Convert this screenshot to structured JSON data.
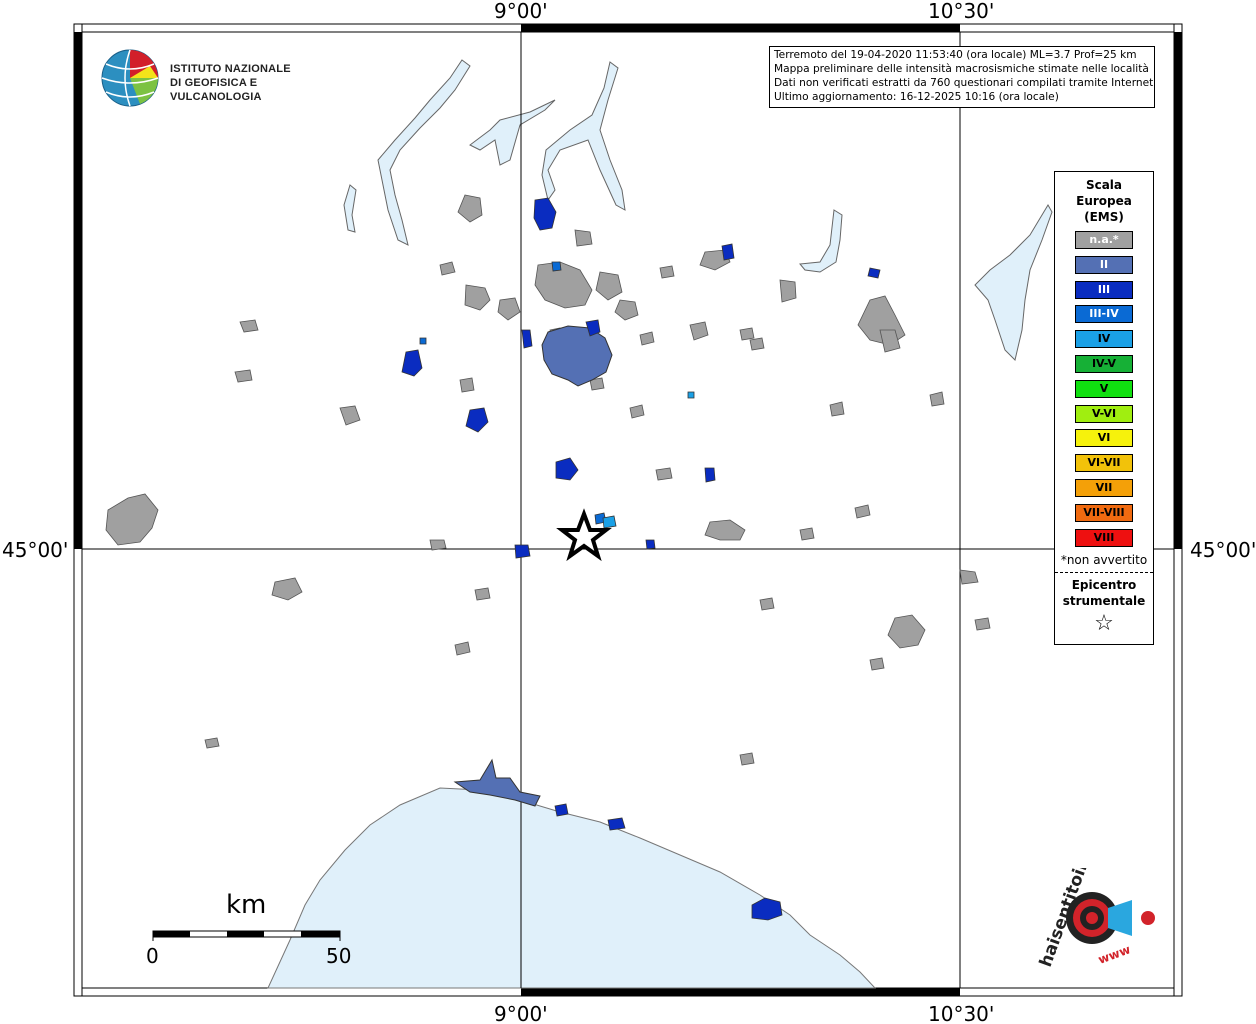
{
  "coordinates": {
    "lon_left": "9°00'",
    "lon_right": "10°30'",
    "lat_mid": "45°00'"
  },
  "logo_ingv": {
    "line1": "ISTITUTO NAZIONALE",
    "line2": "DI GEOFISICA E VULCANOLOGIA"
  },
  "info": {
    "line1": "Terremoto del 19-04-2020 11:53:40 (ora locale) ML=3.7 Prof=25 km",
    "line2": "Mappa preliminare delle intensità macrosismiche stimate nelle località",
    "line3": "Dati non verificati estratti da 760 questionari compilati tramite Internet.",
    "line4": "Ultimo aggiornamento: 16-12-2025 10:16 (ora locale)"
  },
  "legend": {
    "title_line1": "Scala",
    "title_line2": "Europea",
    "title_line3": "(EMS)",
    "items": [
      {
        "label": "n.a.*",
        "color": "#a0a0a0"
      },
      {
        "label": "II",
        "color": "#5470b4"
      },
      {
        "label": "III",
        "color": "#0a2cc0"
      },
      {
        "label": "III-IV",
        "color": "#0a6ad4"
      },
      {
        "label": "IV",
        "color": "#1aa0e6"
      },
      {
        "label": "IV-V",
        "color": "#16b036"
      },
      {
        "label": "V",
        "color": "#10e010"
      },
      {
        "label": "V-VI",
        "color": "#a0ee10"
      },
      {
        "label": "VI",
        "color": "#f6f20c"
      },
      {
        "label": "VI-VII",
        "color": "#f2c20a"
      },
      {
        "label": "VII",
        "color": "#f4a008"
      },
      {
        "label": "VII-VIII",
        "color": "#f06a10"
      },
      {
        "label": "VIII",
        "color": "#ee1010"
      }
    ],
    "note": "*non avvertito",
    "epicentre_line1": "Epicentro",
    "epicentre_line2": "strumentale",
    "star": "☆"
  },
  "scale_bar": {
    "unit": "km",
    "start": "0",
    "end": "50"
  },
  "logo_hst": {
    "text": "haisentitoilterremoto.it",
    "url": "www",
    "icon": "ear-speaker-icon"
  },
  "colors": {
    "sea": "#e0f0fa",
    "lake": "#e0f0fa",
    "not_felt": "#a0a0a0",
    "intensity_ii": "#5470b4",
    "intensity_iii": "#0a2cc0",
    "intensity_iii_iv": "#0a6ad4",
    "intensity_iv": "#1aa0e6"
  }
}
